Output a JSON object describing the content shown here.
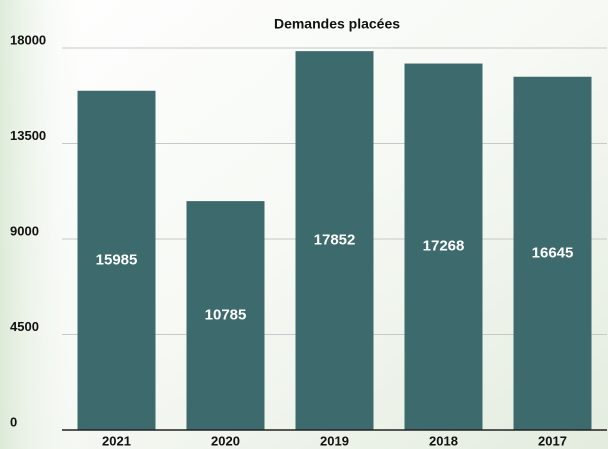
{
  "chart_data": {
    "type": "bar",
    "title": "Demandes placées",
    "categories": [
      "2021",
      "2020",
      "2019",
      "2018",
      "2017"
    ],
    "values": [
      15985,
      10785,
      17852,
      17268,
      16645
    ],
    "color": "#3d6b6d",
    "ylim": [
      0,
      18000
    ],
    "yticks": [
      0,
      4500,
      9000,
      13500,
      18000
    ],
    "grid": true
  }
}
